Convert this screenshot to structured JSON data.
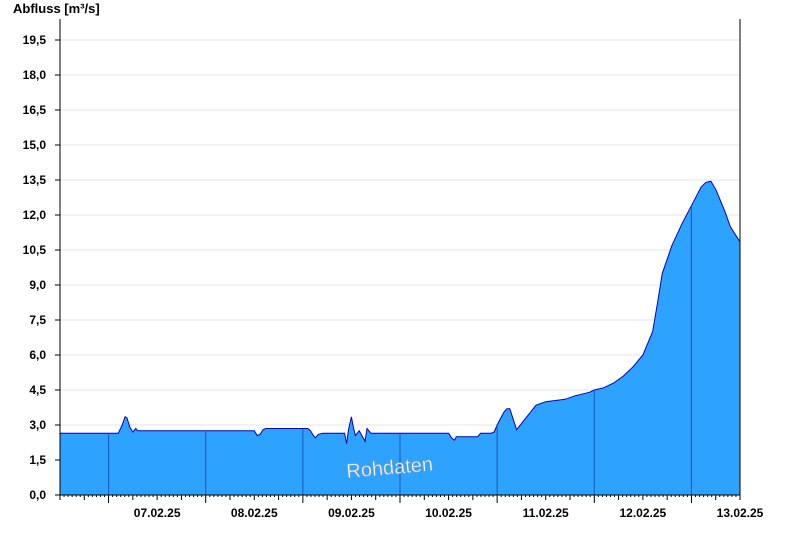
{
  "chart_data": {
    "type": "area",
    "title": "",
    "ylabel": "Abfluss [m³/s]",
    "xlabel": "",
    "ylim": [
      0,
      20.4
    ],
    "yticks": [
      "0,0",
      "1,5",
      "3,0",
      "4,5",
      "6,0",
      "7,5",
      "9,0",
      "10,5",
      "12,0",
      "13,5",
      "15,0",
      "16,5",
      "18,0",
      "19,5"
    ],
    "yticks_values": [
      0,
      1.5,
      3,
      4.5,
      6,
      7.5,
      9,
      10.5,
      12,
      13.5,
      15,
      16.5,
      18,
      19.5
    ],
    "xlim": [
      6.5,
      13.5
    ],
    "xticks": [
      "07.02.25",
      "08.02.25",
      "09.02.25",
      "10.02.25",
      "11.02.25",
      "12.02.25",
      "13.02.25"
    ],
    "day_boundaries": [
      7,
      8,
      9,
      10,
      11,
      12,
      13
    ],
    "watermark": "Rohdaten",
    "grid": true,
    "fill_color": "#2ea2ff",
    "line_color": "#0000cc",
    "series": [
      {
        "x": [
          6.5,
          7.1,
          7.14,
          7.17,
          7.19,
          7.22,
          7.25,
          7.28,
          7.3,
          7.33,
          8.5,
          8.53,
          8.56,
          8.59,
          8.62,
          9.05,
          9.08,
          9.1,
          9.13,
          9.16,
          9.21,
          9.26,
          9.31,
          9.43,
          9.45,
          9.47,
          9.5,
          9.52,
          9.54,
          9.56,
          9.58,
          9.6,
          9.62,
          9.64,
          9.66,
          9.7,
          10.5,
          10.53,
          10.56,
          10.58,
          10.6,
          10.8,
          10.83,
          10.86,
          10.9,
          10.94,
          10.97,
          11.0,
          11.07,
          11.1,
          11.13,
          11.2,
          11.4,
          11.5,
          11.7,
          11.8,
          11.95,
          12.0,
          12.1,
          12.2,
          12.3,
          12.4,
          12.5,
          12.6,
          12.65,
          12.7,
          12.8,
          12.9,
          13.0,
          13.05,
          13.1,
          13.15,
          13.2,
          13.25,
          13.3,
          13.35,
          13.4,
          13.5
        ],
        "y": [
          2.65,
          2.65,
          3.0,
          3.35,
          3.3,
          2.9,
          2.7,
          2.85,
          2.75,
          2.75,
          2.75,
          2.55,
          2.6,
          2.8,
          2.85,
          2.85,
          2.75,
          2.6,
          2.45,
          2.6,
          2.65,
          2.65,
          2.65,
          2.65,
          2.2,
          2.8,
          3.35,
          2.9,
          2.55,
          2.65,
          2.75,
          2.6,
          2.45,
          2.3,
          2.85,
          2.65,
          2.65,
          2.45,
          2.35,
          2.5,
          2.5,
          2.5,
          2.65,
          2.65,
          2.65,
          2.65,
          2.7,
          3.0,
          3.55,
          3.7,
          3.7,
          2.8,
          3.85,
          4.0,
          4.1,
          4.25,
          4.4,
          4.5,
          4.6,
          4.8,
          5.1,
          5.5,
          6.0,
          7.0,
          8.2,
          9.5,
          10.7,
          11.6,
          12.4,
          12.8,
          13.2,
          13.4,
          13.45,
          13.1,
          12.6,
          12.1,
          11.5,
          10.85
        ]
      }
    ]
  }
}
